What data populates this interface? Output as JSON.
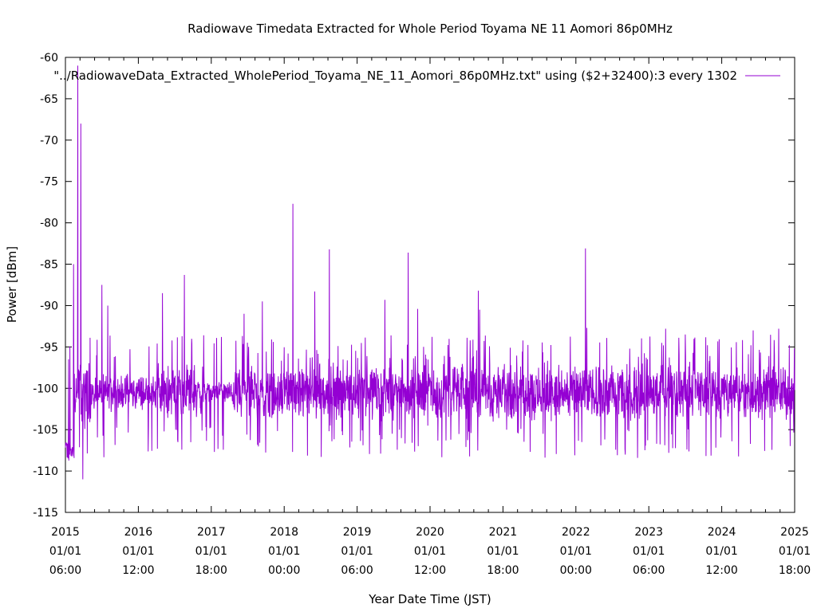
{
  "chart_data": {
    "type": "line",
    "title": "Radiowave Timedata Extracted for Whole Period Toyama NE 11 Aomori 86p0MHz",
    "xlabel": "Year Date Time (JST)",
    "ylabel": "Power [dBm]",
    "ylim": [
      -115,
      -60
    ],
    "yticks": [
      "-60",
      "-65",
      "-70",
      "-75",
      "-80",
      "-85",
      "-90",
      "-95",
      "-100",
      "-105",
      "-110",
      "-115"
    ],
    "xlim": [
      2015.0,
      2025.0
    ],
    "xticks": [
      {
        "year": "2015",
        "date": "01/01",
        "time": "06:00"
      },
      {
        "year": "2016",
        "date": "01/01",
        "time": "12:00"
      },
      {
        "year": "2017",
        "date": "01/01",
        "time": "18:00"
      },
      {
        "year": "2018",
        "date": "01/01",
        "time": "00:00"
      },
      {
        "year": "2019",
        "date": "01/01",
        "time": "06:00"
      },
      {
        "year": "2020",
        "date": "01/01",
        "time": "12:00"
      },
      {
        "year": "2021",
        "date": "01/01",
        "time": "18:00"
      },
      {
        "year": "2022",
        "date": "01/01",
        "time": "00:00"
      },
      {
        "year": "2023",
        "date": "01/01",
        "time": "06:00"
      },
      {
        "year": "2024",
        "date": "01/01",
        "time": "12:00"
      },
      {
        "year": "2025",
        "date": "01/01",
        "time": "18:00"
      }
    ],
    "legend_position": "top-right",
    "series": [
      {
        "name": "\"../RadiowaveData_Extracted_WholePeriod_Toyama_NE_11_Aomori_86p0MHz.txt\" using ($2+32400):3 every 1302",
        "color": "#9400d3",
        "baseline": -100.5,
        "spikes": [
          {
            "x": 2015.11,
            "y": -85
          },
          {
            "x": 2015.17,
            "y": -61
          },
          {
            "x": 2015.21,
            "y": -68
          },
          {
            "x": 2015.24,
            "y": -111
          },
          {
            "x": 2015.5,
            "y": -87.5
          },
          {
            "x": 2015.58,
            "y": -90
          },
          {
            "x": 2016.33,
            "y": -88.5
          },
          {
            "x": 2016.51,
            "y": -105
          },
          {
            "x": 2016.63,
            "y": -86.3
          },
          {
            "x": 2017.45,
            "y": -91
          },
          {
            "x": 2017.7,
            "y": -89.5
          },
          {
            "x": 2018.12,
            "y": -77.7
          },
          {
            "x": 2018.42,
            "y": -88.3
          },
          {
            "x": 2018.62,
            "y": -83.2
          },
          {
            "x": 2018.63,
            "y": -104.5
          },
          {
            "x": 2019.38,
            "y": -89.3
          },
          {
            "x": 2019.58,
            "y": -105
          },
          {
            "x": 2019.7,
            "y": -83.6
          },
          {
            "x": 2019.83,
            "y": -90.4
          },
          {
            "x": 2019.84,
            "y": -107
          },
          {
            "x": 2020.22,
            "y": -106.3
          },
          {
            "x": 2020.66,
            "y": -88.2
          },
          {
            "x": 2020.68,
            "y": -90.5
          },
          {
            "x": 2021.55,
            "y": -105.5
          },
          {
            "x": 2022.08,
            "y": -106.5
          },
          {
            "x": 2022.13,
            "y": -83.1
          },
          {
            "x": 2022.15,
            "y": -92.7
          },
          {
            "x": 2023.23,
            "y": -92.8
          },
          {
            "x": 2023.5,
            "y": -93.5
          },
          {
            "x": 2024.43,
            "y": -93
          },
          {
            "x": 2024.78,
            "y": -92.8
          }
        ]
      }
    ]
  }
}
